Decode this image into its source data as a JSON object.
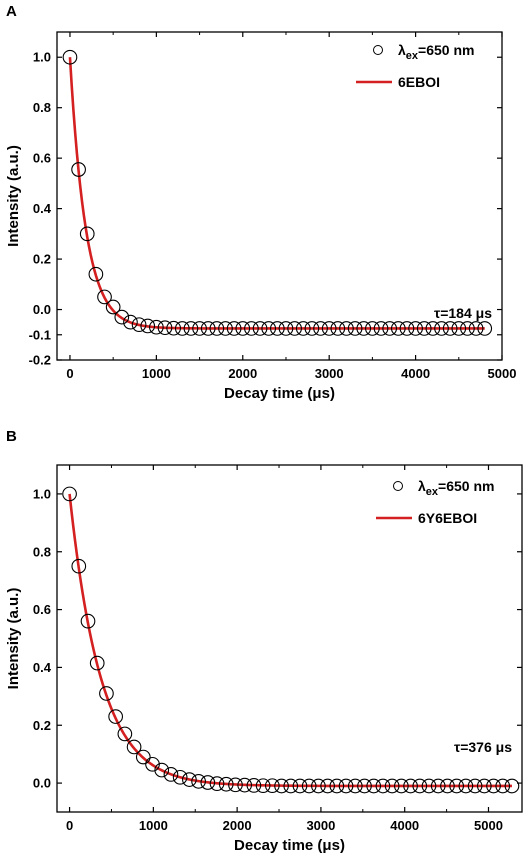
{
  "chart_data": [
    {
      "panel_label": "A",
      "type": "scatter",
      "xlabel": "Decay time (μs)",
      "ylabel": "Intensity (a.u.)",
      "xlim": [
        -150,
        5000
      ],
      "ylim": [
        -0.2,
        1.1
      ],
      "xticks": [
        0,
        1000,
        2000,
        3000,
        4000,
        5000
      ],
      "yticks": [
        -0.2,
        -0.1,
        0.0,
        0.2,
        0.4,
        0.6,
        0.8,
        1.0
      ],
      "ytick_labels": [
        "-0.2",
        "-0.1",
        "0.0",
        "0.2",
        "0.4",
        "0.6",
        "0.8",
        "1.0"
      ],
      "legend": {
        "position": "top-right",
        "marker_label_main": "λ",
        "marker_label_sub": "ex",
        "marker_label_rest": "=650 nm",
        "line_label": "6EBOI"
      },
      "annotation": "τ=184 μs",
      "fit": {
        "y0": -0.075,
        "A": 1.075,
        "tau": 184
      },
      "points": {
        "x": [
          0,
          100,
          200,
          300,
          400,
          500,
          600,
          700,
          800,
          900,
          1000,
          1100,
          1200,
          1300,
          1400,
          1500,
          1600,
          1700,
          1800,
          1900,
          2000,
          2100,
          2200,
          2300,
          2400,
          2500,
          2600,
          2700,
          2800,
          2900,
          3000,
          3100,
          3200,
          3300,
          3400,
          3500,
          3600,
          3700,
          3800,
          3900,
          4000,
          4100,
          4200,
          4300,
          4400,
          4500,
          4600,
          4700,
          4800
        ],
        "y": [
          1.0,
          0.555,
          0.3,
          0.14,
          0.05,
          0.01,
          -0.03,
          -0.05,
          -0.06,
          -0.065,
          -0.07,
          -0.072,
          -0.074,
          -0.075,
          -0.075,
          -0.075,
          -0.075,
          -0.075,
          -0.075,
          -0.075,
          -0.075,
          -0.075,
          -0.075,
          -0.075,
          -0.075,
          -0.075,
          -0.075,
          -0.075,
          -0.075,
          -0.075,
          -0.075,
          -0.075,
          -0.075,
          -0.075,
          -0.075,
          -0.075,
          -0.075,
          -0.075,
          -0.075,
          -0.075,
          -0.075,
          -0.075,
          -0.075,
          -0.075,
          -0.075,
          -0.075,
          -0.075,
          -0.075,
          -0.075
        ]
      },
      "colors": {
        "fit_line": "#d42020",
        "marker": "#000000"
      }
    },
    {
      "panel_label": "B",
      "type": "scatter",
      "xlabel": "Decay time (μs)",
      "ylabel": "Intensity (a.u.)",
      "xlim": [
        -150,
        5400
      ],
      "ylim": [
        -0.1,
        1.1
      ],
      "xticks": [
        0,
        1000,
        2000,
        3000,
        4000,
        5000
      ],
      "yticks": [
        0.0,
        0.2,
        0.4,
        0.6,
        0.8,
        1.0
      ],
      "ytick_labels": [
        "0.0",
        "0.2",
        "0.4",
        "0.6",
        "0.8",
        "1.0"
      ],
      "legend": {
        "position": "top-right",
        "marker_label_main": "λ",
        "marker_label_sub": "ex",
        "marker_label_rest": "=650 nm",
        "line_label": "6Y6EBOI"
      },
      "annotation": "τ=376 μs",
      "fit": {
        "y0": -0.01,
        "A": 1.01,
        "tau": 376
      },
      "points": {
        "x": [
          0,
          110,
          220,
          330,
          440,
          550,
          660,
          770,
          880,
          990,
          1100,
          1210,
          1320,
          1430,
          1540,
          1650,
          1760,
          1870,
          1980,
          2090,
          2200,
          2310,
          2420,
          2530,
          2640,
          2750,
          2860,
          2970,
          3080,
          3190,
          3300,
          3410,
          3520,
          3630,
          3740,
          3850,
          3960,
          4070,
          4180,
          4290,
          4400,
          4510,
          4620,
          4730,
          4840,
          4950,
          5060,
          5170,
          5280
        ],
        "y": [
          1.0,
          0.75,
          0.56,
          0.415,
          0.31,
          0.23,
          0.17,
          0.125,
          0.09,
          0.065,
          0.045,
          0.03,
          0.02,
          0.012,
          0.006,
          0.002,
          -0.002,
          -0.004,
          -0.006,
          -0.007,
          -0.008,
          -0.009,
          -0.009,
          -0.01,
          -0.01,
          -0.01,
          -0.01,
          -0.01,
          -0.01,
          -0.01,
          -0.01,
          -0.01,
          -0.01,
          -0.01,
          -0.01,
          -0.01,
          -0.01,
          -0.01,
          -0.01,
          -0.01,
          -0.01,
          -0.01,
          -0.01,
          -0.01,
          -0.01,
          -0.01,
          -0.01,
          -0.01,
          -0.01
        ]
      },
      "colors": {
        "fit_line": "#d42020",
        "marker": "#000000"
      }
    }
  ]
}
